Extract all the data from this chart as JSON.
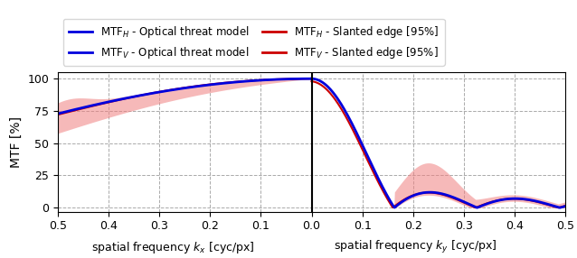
{
  "ylabel": "MTF [%]",
  "xlabel_left": "spatial frequency $k_x$ [cyc/px]",
  "xlabel_right": "spatial frequency $k_y$ [cyc/px]",
  "ylim": [
    -3,
    105
  ],
  "yticks": [
    0,
    25,
    50,
    75,
    100
  ],
  "blue_color": "#0000dd",
  "red_color": "#cc0000",
  "fill_color": "#f08080",
  "fill_alpha": 0.55,
  "legend_entries": [
    "MTF$_H$ - Optical threat model",
    "MTF$_V$ - Optical threat model",
    "MTF$_H$ - Slanted edge [95%]",
    "MTF$_V$ - Slanted edge [95%]"
  ],
  "background_color": "#ffffff"
}
